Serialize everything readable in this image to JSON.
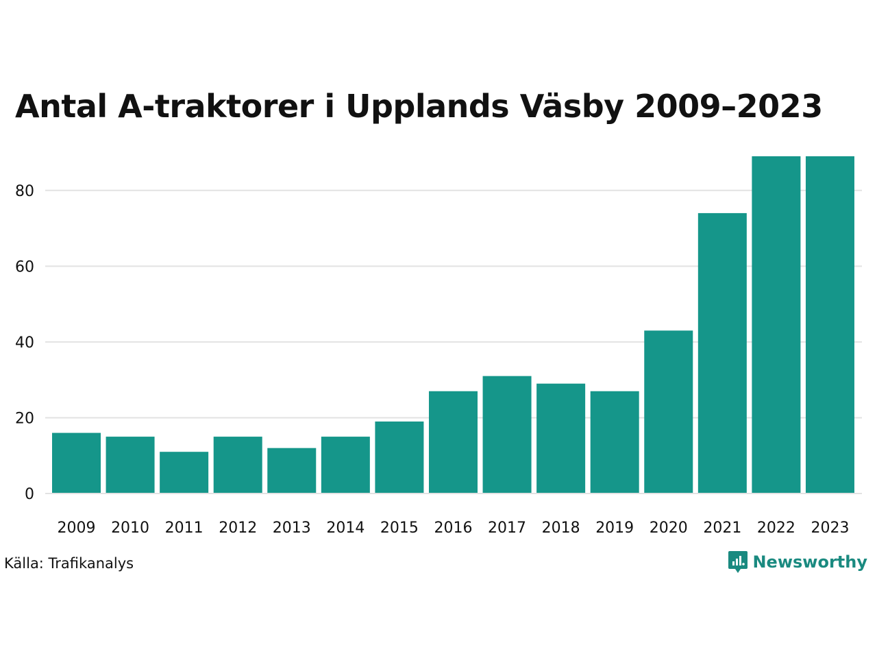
{
  "chart_data": {
    "type": "bar",
    "title": "Antal A-traktorer i Upplands Väsby 2009–2023",
    "categories": [
      "2009",
      "2010",
      "2011",
      "2012",
      "2013",
      "2014",
      "2015",
      "2016",
      "2017",
      "2018",
      "2019",
      "2020",
      "2021",
      "2022",
      "2023"
    ],
    "values": [
      16,
      15,
      11,
      15,
      12,
      15,
      19,
      27,
      31,
      29,
      27,
      43,
      74,
      89,
      89
    ],
    "yticks": [
      0,
      20,
      40,
      60,
      80
    ],
    "ylim": [
      0,
      89
    ],
    "xlabel": "",
    "ylabel": "",
    "bar_color": "#15968a",
    "grid_color": "#e2e2e2"
  },
  "source": "Källa: Trafikanalys",
  "brand": {
    "name": "Newsworthy",
    "icon": "newsworthy-logo-icon",
    "color": "#1a8a80"
  }
}
